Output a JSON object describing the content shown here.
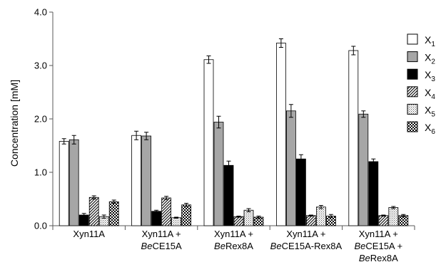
{
  "chart_data": {
    "type": "bar",
    "ylabel": "Concentration [mM]",
    "ylim": [
      0,
      4.0
    ],
    "yticks": [
      "0.0",
      "1.0",
      "2.0",
      "3.0",
      "4.0"
    ],
    "grid": false,
    "legend_position": "right",
    "categories": [
      {
        "lines": [
          {
            "text": "Xyn11A"
          }
        ]
      },
      {
        "lines": [
          {
            "text": "Xyn11A +"
          },
          {
            "italic": "Be",
            "text": "CE15A"
          }
        ]
      },
      {
        "lines": [
          {
            "text": "Xyn11A  +"
          },
          {
            "italic": "Be",
            "text": "Rex8A"
          }
        ]
      },
      {
        "lines": [
          {
            "text": "Xyn11A +"
          },
          {
            "italic": "Be",
            "text": "CE15A-Rex8A"
          }
        ]
      },
      {
        "lines": [
          {
            "text": "Xyn11A +"
          },
          {
            "italic": "Be",
            "text": "CE15A +"
          },
          {
            "italic": "Be",
            "text": "Rex8A"
          }
        ]
      }
    ],
    "series": [
      {
        "name": "X1",
        "name_base": "X",
        "name_sub": "1",
        "pattern": "white",
        "values": [
          1.58,
          1.69,
          3.11,
          3.42,
          3.28
        ],
        "errors": [
          0.05,
          0.08,
          0.07,
          0.08,
          0.08
        ]
      },
      {
        "name": "X2",
        "name_base": "X",
        "name_sub": "2",
        "pattern": "gray",
        "values": [
          1.61,
          1.68,
          1.94,
          2.15,
          2.09
        ],
        "errors": [
          0.08,
          0.07,
          0.11,
          0.12,
          0.06
        ]
      },
      {
        "name": "X3",
        "name_base": "X",
        "name_sub": "3",
        "pattern": "black",
        "values": [
          0.2,
          0.27,
          1.13,
          1.25,
          1.2
        ],
        "errors": [
          0.03,
          0.02,
          0.08,
          0.08,
          0.05
        ]
      },
      {
        "name": "X4",
        "name_base": "X",
        "name_sub": "4",
        "pattern": "diagonal",
        "values": [
          0.53,
          0.52,
          0.17,
          0.19,
          0.19
        ],
        "errors": [
          0.03,
          0.03,
          0.01,
          0.01,
          0.01
        ]
      },
      {
        "name": "X5",
        "name_base": "X",
        "name_sub": "5",
        "pattern": "dots",
        "values": [
          0.17,
          0.15,
          0.29,
          0.35,
          0.34
        ],
        "errors": [
          0.03,
          0.01,
          0.03,
          0.03,
          0.02
        ]
      },
      {
        "name": "X6",
        "name_base": "X",
        "name_sub": "6",
        "pattern": "checker",
        "values": [
          0.45,
          0.39,
          0.16,
          0.18,
          0.19
        ],
        "errors": [
          0.03,
          0.03,
          0.02,
          0.03,
          0.02
        ]
      }
    ]
  },
  "colors": {
    "axis": "#595959",
    "bar_outline": "#000000",
    "gray_fill": "#a6a6a6",
    "black_fill": "#000000",
    "pattern_ink": "#000000",
    "background": "#ffffff"
  }
}
